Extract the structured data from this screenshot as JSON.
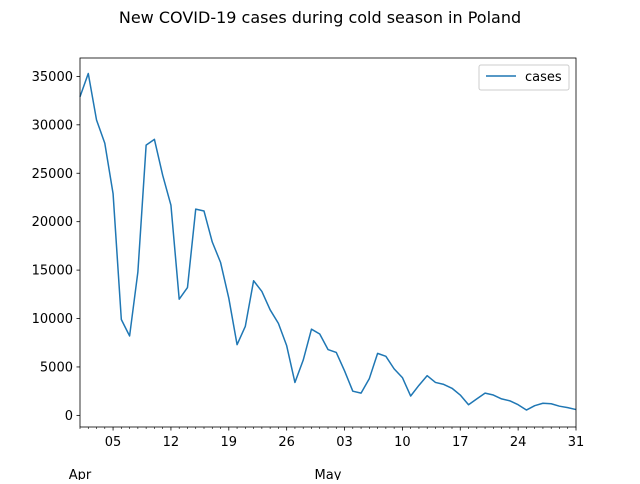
{
  "chart_data": {
    "type": "line",
    "title": "New COVID-19 cases during cold season in Poland",
    "xlabel": "",
    "ylabel": "",
    "x_start": "2021-04-01",
    "x_end": "2021-05-31",
    "xlim": [
      "2021-04-01",
      "2021-05-31"
    ],
    "ylim": [
      -1200,
      36900
    ],
    "x_tick_labels": [
      {
        "date": "2021-04-05",
        "label": "05"
      },
      {
        "date": "2021-04-12",
        "label": "12"
      },
      {
        "date": "2021-04-19",
        "label": "19"
      },
      {
        "date": "2021-04-26",
        "label": "26"
      },
      {
        "date": "2021-05-03",
        "label": "03"
      },
      {
        "date": "2021-05-10",
        "label": "10"
      },
      {
        "date": "2021-05-17",
        "label": "17"
      },
      {
        "date": "2021-05-24",
        "label": "24"
      },
      {
        "date": "2021-05-31",
        "label": "31"
      }
    ],
    "month_labels": [
      {
        "date": "2021-04-01",
        "label": "Apr"
      },
      {
        "date": "2021-05-01",
        "label": "May"
      }
    ],
    "y_ticks": [
      0,
      5000,
      10000,
      15000,
      20000,
      25000,
      30000,
      35000
    ],
    "legend": {
      "position": "top-right",
      "entries": [
        "cases"
      ]
    },
    "series": [
      {
        "name": "cases",
        "color": "#1f77b4",
        "x": [
          "2021-04-01",
          "2021-04-02",
          "2021-04-03",
          "2021-04-04",
          "2021-04-05",
          "2021-04-06",
          "2021-04-07",
          "2021-04-08",
          "2021-04-09",
          "2021-04-10",
          "2021-04-11",
          "2021-04-12",
          "2021-04-13",
          "2021-04-14",
          "2021-04-15",
          "2021-04-16",
          "2021-04-17",
          "2021-04-18",
          "2021-04-19",
          "2021-04-20",
          "2021-04-21",
          "2021-04-22",
          "2021-04-23",
          "2021-04-24",
          "2021-04-25",
          "2021-04-26",
          "2021-04-27",
          "2021-04-28",
          "2021-04-29",
          "2021-04-30",
          "2021-05-01",
          "2021-05-02",
          "2021-05-03",
          "2021-05-04",
          "2021-05-05",
          "2021-05-06",
          "2021-05-07",
          "2021-05-08",
          "2021-05-09",
          "2021-05-10",
          "2021-05-11",
          "2021-05-12",
          "2021-05-13",
          "2021-05-14",
          "2021-05-15",
          "2021-05-16",
          "2021-05-17",
          "2021-05-18",
          "2021-05-19",
          "2021-05-20",
          "2021-05-21",
          "2021-05-22",
          "2021-05-23",
          "2021-05-24",
          "2021-05-25",
          "2021-05-26",
          "2021-05-27",
          "2021-05-28",
          "2021-05-29",
          "2021-05-30",
          "2021-05-31"
        ],
        "values": [
          32900,
          35300,
          30500,
          28100,
          22900,
          9900,
          8200,
          14800,
          27900,
          28500,
          24800,
          21700,
          12000,
          13200,
          21300,
          21100,
          17900,
          15800,
          12100,
          7300,
          9200,
          13900,
          12800,
          10900,
          9500,
          7200,
          3400,
          5700,
          8900,
          8400,
          6800,
          6500,
          4600,
          2500,
          2300,
          3800,
          6400,
          6100,
          4800,
          3900,
          2000,
          3100,
          4100,
          3400,
          3200,
          2800,
          2100,
          1100,
          1700,
          2300,
          2100,
          1700,
          1500,
          1100,
          550,
          1000,
          1250,
          1200,
          950,
          800,
          600
        ]
      }
    ]
  }
}
